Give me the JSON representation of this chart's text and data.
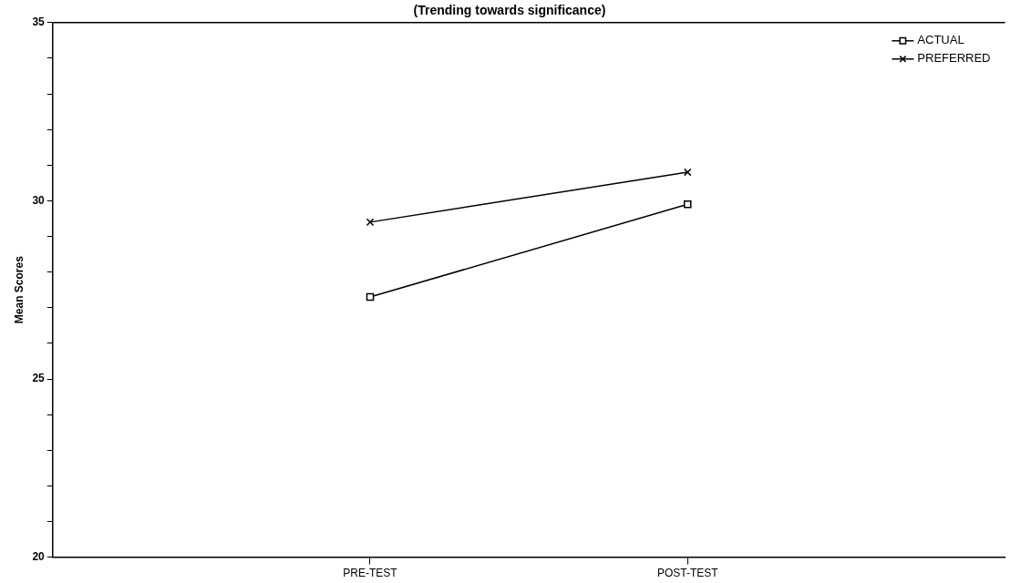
{
  "chart_data": {
    "type": "line",
    "title": "(Trending towards significance)",
    "ylabel": "Mean Scores",
    "categories": [
      "PRE-TEST",
      "POST-TEST"
    ],
    "series": [
      {
        "name": "ACTUAL",
        "color": "#000000",
        "marker": "square",
        "values": [
          27.3,
          29.9
        ]
      },
      {
        "name": "PREFERRED",
        "color": "#000000",
        "marker": "cross",
        "values": [
          29.4,
          30.8
        ]
      }
    ],
    "ylim": [
      20,
      35
    ],
    "yticks": [
      20,
      {
        "value": 21,
        "label": null
      },
      {
        "value": 22,
        "label": null
      },
      {
        "value": 23,
        "label": null
      },
      {
        "value": 24,
        "label": null
      },
      25,
      {
        "value": 26,
        "label": null
      },
      {
        "value": 27,
        "label": null
      },
      {
        "value": 28,
        "label": null
      },
      {
        "value": 29,
        "label": null
      },
      30,
      {
        "value": 31,
        "label": null
      },
      {
        "value": 32,
        "label": null
      },
      {
        "value": 33,
        "label": null
      },
      {
        "value": 34,
        "label": null
      },
      35
    ],
    "grid": false,
    "legend": "top right",
    "line_style": "solid"
  }
}
